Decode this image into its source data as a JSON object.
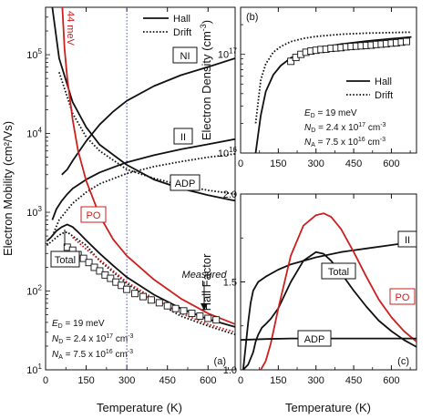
{
  "chart_data": [
    {
      "type": "line",
      "panel_label": "(a)",
      "xlabel": "Temperature (K)",
      "ylabel": "Electron Mobility (cm²/Vs)",
      "xlim": [
        0,
        700
      ],
      "ylim": [
        10,
        400000
      ],
      "yscale": "log",
      "x_ticks": [
        "0",
        "150",
        "300",
        "450",
        "600"
      ],
      "y_ticks": [
        {
          "base": "10",
          "exp": "1"
        },
        {
          "base": "10",
          "exp": "2"
        },
        {
          "base": "10",
          "exp": "3"
        },
        {
          "base": "10",
          "exp": "4"
        },
        {
          "base": "10",
          "exp": "5"
        }
      ],
      "legend": [
        {
          "name": "Hall",
          "style": "solid"
        },
        {
          "name": "Drift",
          "style": "dotted"
        }
      ],
      "curve_labels": {
        "ni": "NI",
        "ii": "II",
        "adp": "ADP",
        "po": "PO",
        "total": "Total",
        "measured": "Measured"
      },
      "po_energy_label": "44 meV",
      "vline_x": 300,
      "params": {
        "ed_label": "E",
        "ed_sub": "D",
        "ed_value": " = 19 meV",
        "nd_label": "N",
        "nd_sub": "D",
        "nd_value": " = 2.4 x 10",
        "nd_exp": "17",
        "nd_unit": " cm",
        "nd_unit_exp": "-3",
        "na_label": "N",
        "na_sub": "A",
        "na_value": " = 7.5 x 10",
        "na_exp": "16",
        "na_unit": " cm",
        "na_unit_exp": "-3"
      },
      "series": [
        {
          "name": "NI",
          "color": "#111111",
          "style": "solid",
          "x": [
            60,
            80,
            100,
            150,
            200,
            250,
            300,
            400,
            500,
            600,
            700
          ],
          "y": [
            3000,
            3500,
            4500,
            8000,
            13000,
            19000,
            26000,
            40000,
            55000,
            70000,
            90000
          ]
        },
        {
          "name": "II",
          "color": "#111111",
          "style": "solid",
          "x": [
            25,
            40,
            60,
            80,
            100,
            150,
            200,
            300,
            400,
            500,
            600,
            700
          ],
          "y": [
            800,
            1100,
            1400,
            1700,
            2000,
            2600,
            3200,
            4300,
            5300,
            6300,
            7300,
            8500
          ]
        },
        {
          "name": "ADP",
          "color": "#111111",
          "style": "solid",
          "x": [
            25,
            50,
            100,
            150,
            200,
            300,
            400,
            500,
            600,
            700
          ],
          "y": [
            400000,
            90000,
            25000,
            12000,
            7200,
            4000,
            2600,
            2000,
            1650,
            1400
          ]
        },
        {
          "name": "ADP drift",
          "color": "#111111",
          "style": "dotted",
          "x": [
            50,
            100,
            150,
            200,
            300,
            400,
            500,
            600,
            700
          ],
          "y": [
            60000,
            18000,
            9000,
            6000,
            3500,
            2700,
            2200,
            1900,
            1700
          ]
        },
        {
          "name": "II drift",
          "color": "#111111",
          "style": "dotted",
          "x": [
            25,
            50,
            100,
            150,
            200,
            300,
            400,
            500,
            600,
            700
          ],
          "y": [
            500,
            800,
            1300,
            1800,
            2300,
            3100,
            3800,
            4400,
            5000,
            5500
          ]
        },
        {
          "name": "PO",
          "color": "#cc1f1f",
          "style": "solid",
          "x": [
            62,
            70,
            80,
            100,
            120,
            150,
            200,
            250,
            300,
            400,
            500,
            600,
            700
          ],
          "y": [
            400000,
            120000,
            50000,
            15000,
            6000,
            2500,
            900,
            450,
            280,
            140,
            80,
            52,
            38
          ]
        },
        {
          "name": "Total Hall",
          "color": "#111111",
          "style": "solid",
          "x": [
            5,
            20,
            40,
            60,
            80,
            100,
            120,
            150,
            200,
            250,
            300,
            400,
            500,
            600,
            700
          ],
          "y": [
            430,
            480,
            580,
            650,
            700,
            650,
            560,
            440,
            300,
            210,
            150,
            90,
            60,
            44,
            35
          ]
        },
        {
          "name": "Total drift",
          "color": "#111111",
          "style": "dotted",
          "x": [
            5,
            20,
            40,
            60,
            80,
            100,
            150,
            200,
            300,
            400,
            500,
            600,
            700
          ],
          "y": [
            380,
            420,
            480,
            540,
            560,
            500,
            380,
            240,
            125,
            75,
            48,
            36,
            28
          ]
        },
        {
          "name": "PO drift",
          "color": "#cc1f1f",
          "style": "dotted",
          "x": [
            100,
            150,
            200,
            300,
            400,
            500,
            600,
            700
          ],
          "y": [
            480,
            340,
            250,
            130,
            80,
            52,
            38,
            30
          ]
        },
        {
          "name": "Measured",
          "color": "#111111",
          "style": "markers",
          "x": [
            80,
            100,
            120,
            140,
            160,
            180,
            200,
            220,
            240,
            260,
            280,
            300,
            330,
            360,
            390,
            420,
            450,
            480,
            510,
            540,
            570,
            600,
            630
          ],
          "y": [
            360,
            330,
            290,
            260,
            230,
            200,
            180,
            160,
            145,
            130,
            118,
            105,
            93,
            85,
            77,
            71,
            65,
            60,
            56,
            52,
            48,
            45,
            43
          ]
        }
      ]
    },
    {
      "type": "line",
      "panel_label": "(b)",
      "xlabel": "",
      "ylabel": "Electron Density (cm",
      "ylabel_exp": "-3",
      "ylabel_close": ")",
      "xlim": [
        0,
        700
      ],
      "ylim": [
        10000000000000000,
        300000000000000000
      ],
      "yscale": "log",
      "x_ticks": [
        "0",
        "150",
        "300",
        "450",
        "600"
      ],
      "y_ticks": [
        {
          "base": "10",
          "exp": "16"
        },
        {
          "base": "10",
          "exp": "17"
        }
      ],
      "legend": [
        {
          "name": "Hall",
          "style": "solid"
        },
        {
          "name": "Drift",
          "style": "dotted"
        }
      ],
      "params": {
        "ed_label": "E",
        "ed_sub": "D",
        "ed_value": " = 19 meV",
        "nd_label": "N",
        "nd_sub": "D",
        "nd_value": " = 2.4 x 10",
        "nd_exp": "17",
        "nd_unit": " cm",
        "nd_unit_exp": "-3",
        "na_label": "N",
        "na_sub": "A",
        "na_value": " = 7.5 x 10",
        "na_exp": "16",
        "na_unit": " cm",
        "na_unit_exp": "-3"
      },
      "series": [
        {
          "name": "Hall",
          "color": "#111111",
          "style": "solid",
          "x": [
            60,
            80,
            100,
            130,
            160,
            200,
            250,
            300,
            400,
            500,
            600,
            680
          ],
          "y": [
            1e+16,
            2.4e+16,
            4.2e+16,
            6.2e+16,
            7.7e+16,
            9.2e+16,
            1.05e+17,
            1.15e+17,
            1.27e+17,
            1.36e+17,
            1.44e+17,
            1.5e+17
          ]
        },
        {
          "name": "Drift",
          "color": "#111111",
          "style": "dotted",
          "x": [
            60,
            80,
            100,
            130,
            160,
            200,
            250,
            300,
            400,
            500,
            600,
            680
          ],
          "y": [
            2e+16,
            5.5e+16,
            8e+16,
            1.05e+17,
            1.2e+17,
            1.35e+17,
            1.45e+17,
            1.52e+17,
            1.6e+17,
            1.64e+17,
            1.66e+17,
            1.68e+17
          ]
        },
        {
          "name": "Measured",
          "color": "#111111",
          "style": "markers",
          "x": [
            200,
            220,
            240,
            260,
            280,
            300,
            320,
            340,
            360,
            380,
            400,
            420,
            440,
            460,
            480,
            500,
            520,
            540,
            560,
            580,
            600,
            620,
            640,
            660
          ],
          "y": [
            8.5e+16,
            9.3e+16,
            1e+17,
            1.05e+17,
            1.08e+17,
            1.1e+17,
            1.12e+17,
            1.13e+17,
            1.15e+17,
            1.16e+17,
            1.17e+17,
            1.19e+17,
            1.2e+17,
            1.21e+17,
            1.22e+17,
            1.23e+17,
            1.24e+17,
            1.26e+17,
            1.27e+17,
            1.28e+17,
            1.3e+17,
            1.31e+17,
            1.33e+17,
            1.35e+17
          ]
        }
      ]
    },
    {
      "type": "line",
      "panel_label": "(c)",
      "xlabel": "Temperature (K)",
      "ylabel": "Hall Factor",
      "xlim": [
        0,
        700
      ],
      "ylim": [
        1.0,
        2.0
      ],
      "yscale": "linear",
      "x_ticks": [
        "0",
        "150",
        "300",
        "450",
        "600"
      ],
      "y_ticks": [
        "1.0",
        "1.5",
        "2.0"
      ],
      "curve_labels": {
        "ii": "II",
        "total": "Total",
        "po": "PO",
        "adp": "ADP"
      },
      "series": [
        {
          "name": "II",
          "color": "#111111",
          "style": "solid",
          "x": [
            10,
            20,
            30,
            40,
            50,
            70,
            100,
            150,
            200,
            300,
            400,
            500,
            600,
            700
          ],
          "y": [
            1.0,
            1.13,
            1.27,
            1.38,
            1.45,
            1.5,
            1.53,
            1.57,
            1.6,
            1.64,
            1.67,
            1.69,
            1.71,
            1.73
          ]
        },
        {
          "name": "Total",
          "color": "#111111",
          "style": "solid",
          "x": [
            10,
            30,
            50,
            60,
            70,
            85,
            100,
            120,
            150,
            200,
            250,
            300,
            330,
            360,
            400,
            450,
            500,
            550,
            600,
            650,
            700
          ],
          "y": [
            1.0,
            1.03,
            1.1,
            1.16,
            1.2,
            1.24,
            1.26,
            1.29,
            1.35,
            1.5,
            1.62,
            1.67,
            1.66,
            1.62,
            1.55,
            1.45,
            1.36,
            1.28,
            1.22,
            1.17,
            1.13
          ]
        },
        {
          "name": "PO",
          "color": "#cc1f1f",
          "style": "solid",
          "x": [
            80,
            100,
            120,
            150,
            200,
            250,
            300,
            330,
            360,
            400,
            450,
            500,
            550,
            600,
            650,
            700
          ],
          "y": [
            1.0,
            1.05,
            1.15,
            1.35,
            1.65,
            1.82,
            1.88,
            1.89,
            1.87,
            1.8,
            1.67,
            1.53,
            1.4,
            1.3,
            1.22,
            1.16
          ]
        },
        {
          "name": "ADP",
          "color": "#111111",
          "style": "solid",
          "x": [
            0,
            100,
            200,
            300,
            400,
            500,
            600,
            700
          ],
          "y": [
            1.17,
            1.175,
            1.178,
            1.178,
            1.178,
            1.178,
            1.178,
            1.178
          ]
        }
      ]
    }
  ]
}
